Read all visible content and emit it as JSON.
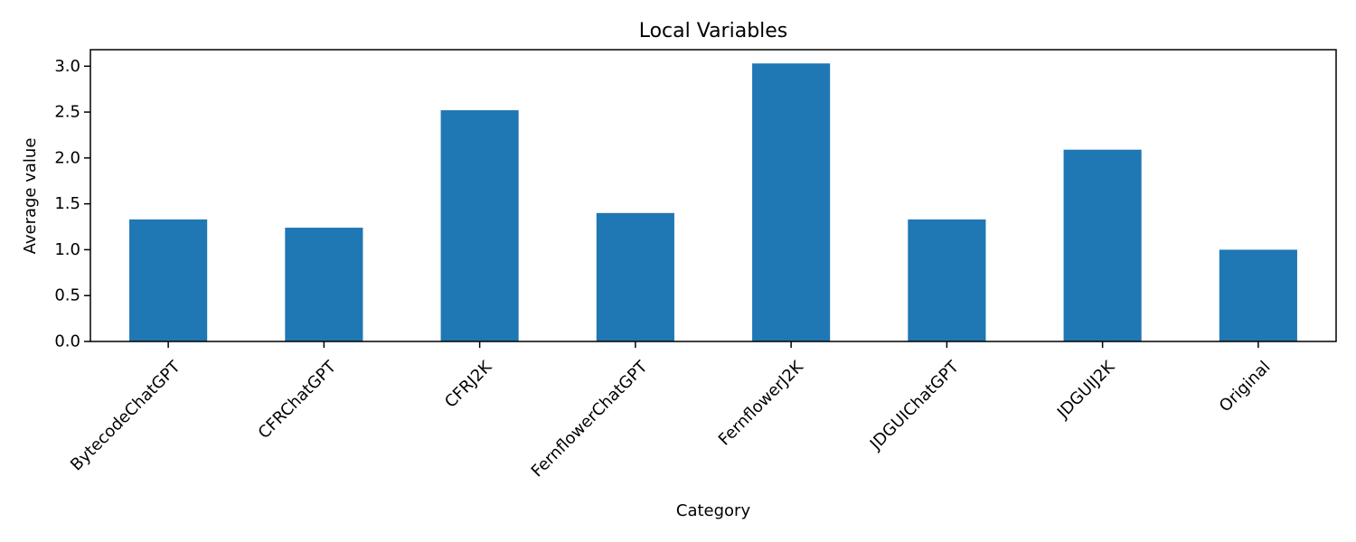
{
  "chart_data": {
    "type": "bar",
    "title": "Local Variables",
    "xlabel": "Category",
    "ylabel": "Average value",
    "categories": [
      "BytecodeChatGPT",
      "CFRChatGPT",
      "CFRJ2K",
      "FernflowerChatGPT",
      "FernflowerJ2K",
      "JDGUIChatGPT",
      "JDGUIJ2K",
      "Original"
    ],
    "values": [
      1.33,
      1.24,
      2.52,
      1.4,
      3.03,
      1.33,
      2.09,
      1.0
    ],
    "ylim": [
      0,
      3.18
    ],
    "yticks": [
      "0.0",
      "0.5",
      "1.0",
      "1.5",
      "2.0",
      "2.5",
      "3.0"
    ],
    "grid": false,
    "legend": "none",
    "bar_color": "#1f77b4"
  }
}
